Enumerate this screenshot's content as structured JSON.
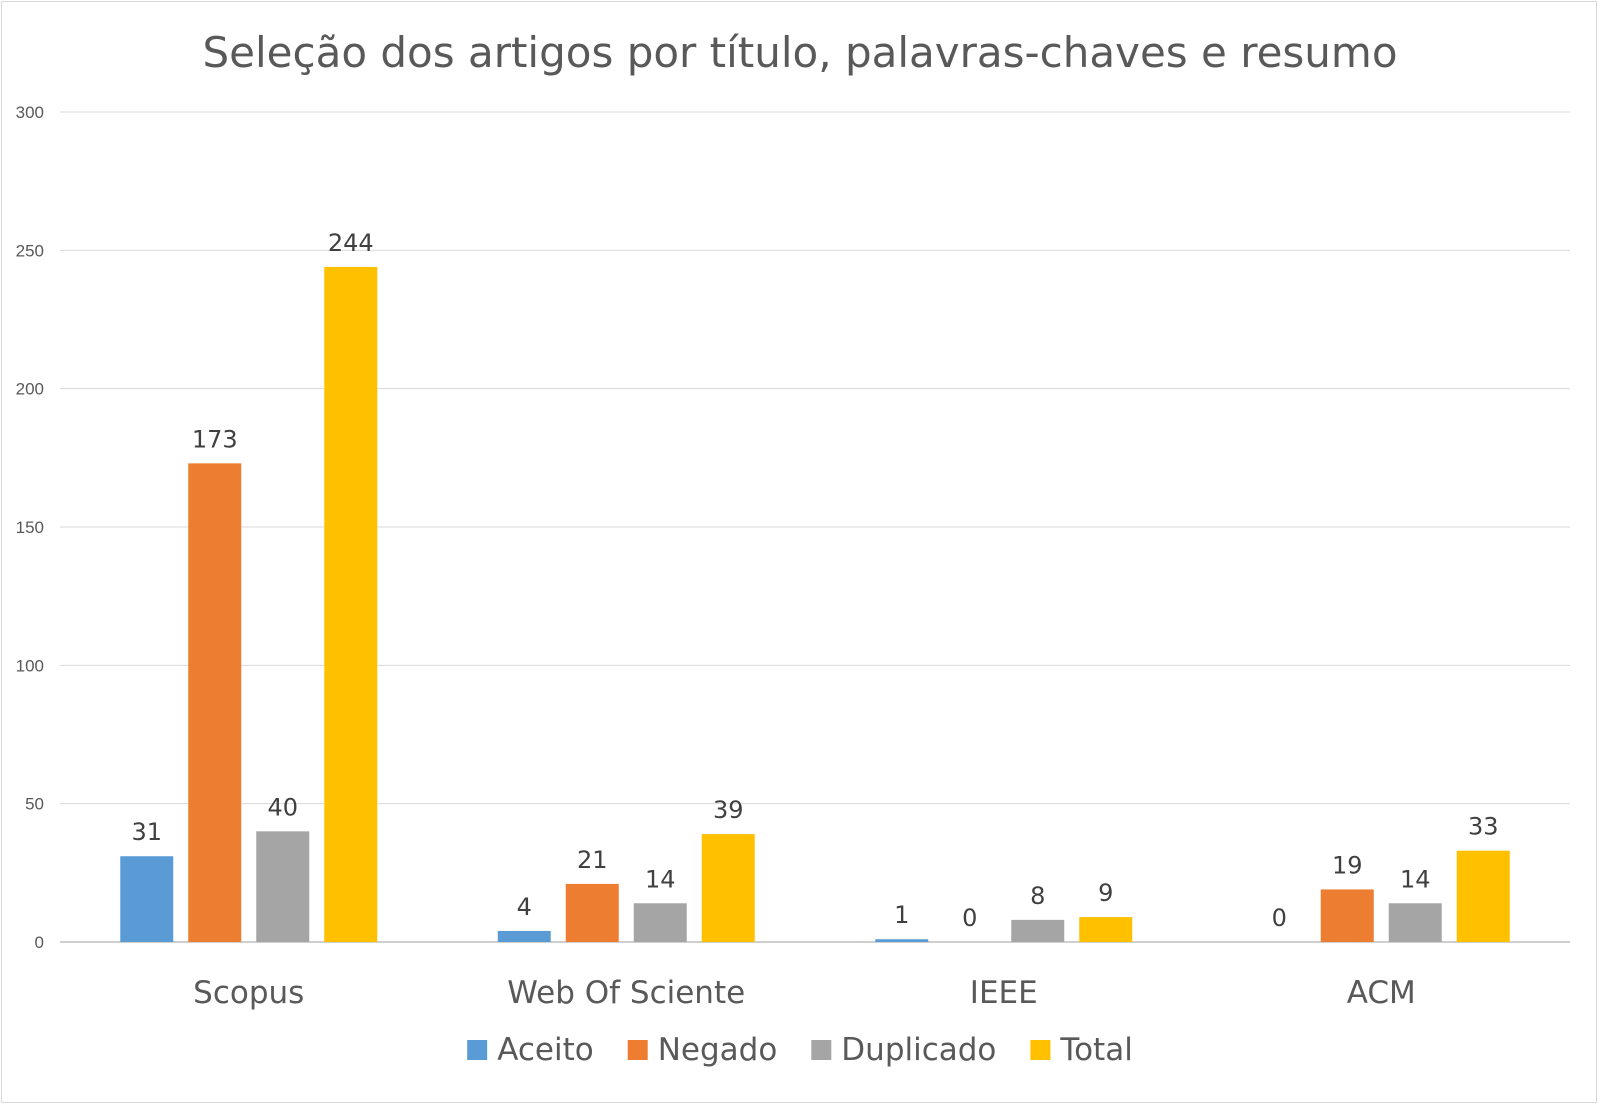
{
  "chart_data": {
    "type": "bar",
    "title": "Seleção dos artigos por título, palavras-chaves e resumo",
    "xlabel": "",
    "ylabel": "",
    "categories": [
      "Scopus",
      "Web Of Sciente",
      "IEEE",
      "ACM"
    ],
    "series": [
      {
        "name": "Aceito",
        "color": "#5b9bd5",
        "values": [
          31,
          4,
          1,
          0
        ]
      },
      {
        "name": "Negado",
        "color": "#ed7d31",
        "values": [
          173,
          21,
          0,
          19
        ]
      },
      {
        "name": "Duplicado",
        "color": "#a5a5a5",
        "values": [
          40,
          14,
          8,
          14
        ]
      },
      {
        "name": "Total",
        "color": "#ffc000",
        "values": [
          244,
          39,
          9,
          33
        ]
      }
    ],
    "ylim": [
      0,
      300
    ],
    "yticks": [
      0,
      50,
      100,
      150,
      200,
      250,
      300
    ],
    "grid": true,
    "legend_position": "bottom",
    "data_labels": true
  }
}
